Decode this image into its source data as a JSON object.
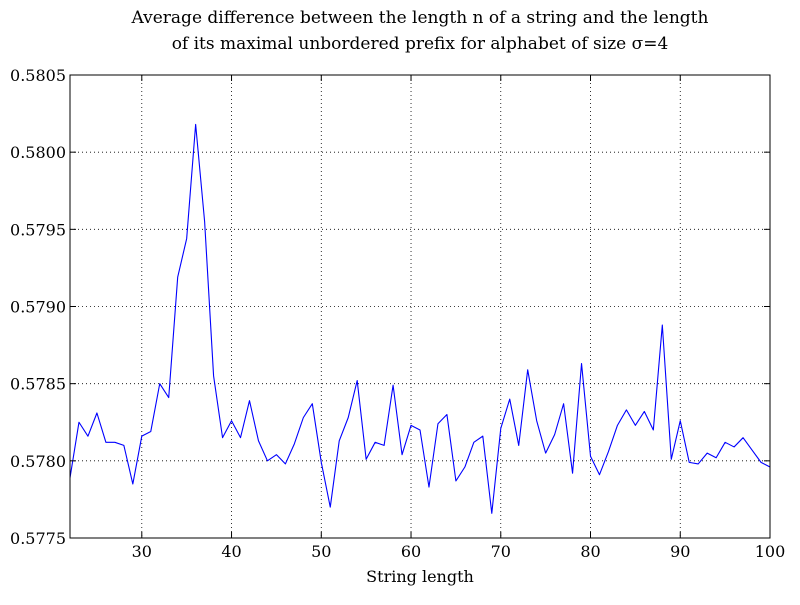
{
  "chart_data": {
    "type": "line",
    "title_lines": [
      "Average difference between the length n of a string and the length",
      "of its maximal unbordered prefix for alphabet of size σ=4"
    ],
    "xlabel": "String length",
    "ylabel": "",
    "xlim": [
      22,
      100
    ],
    "ylim": [
      0.5775,
      0.5805
    ],
    "x_ticks": [
      30,
      40,
      50,
      60,
      70,
      80,
      90,
      100
    ],
    "x_tick_labels": [
      "30",
      "40",
      "50",
      "60",
      "70",
      "80",
      "90",
      "100"
    ],
    "y_ticks": [
      0.5775,
      0.578,
      0.5785,
      0.579,
      0.5795,
      0.58,
      0.5805
    ],
    "y_tick_labels": [
      "0.5775",
      "0.5780",
      "0.5785",
      "0.5790",
      "0.5795",
      "0.5800",
      "0.5805"
    ],
    "grid": true,
    "series": [
      {
        "color": "#0000ff",
        "x": [
          22,
          23,
          24,
          25,
          26,
          27,
          28,
          29,
          30,
          31,
          32,
          33,
          34,
          35,
          36,
          37,
          38,
          39,
          40,
          41,
          42,
          43,
          44,
          45,
          46,
          47,
          48,
          49,
          50,
          51,
          52,
          53,
          54,
          55,
          56,
          57,
          58,
          59,
          60,
          61,
          62,
          63,
          64,
          65,
          66,
          67,
          68,
          69,
          70,
          71,
          72,
          73,
          74,
          75,
          76,
          77,
          78,
          79,
          80,
          81,
          82,
          83,
          84,
          85,
          86,
          87,
          88,
          89,
          90,
          91,
          92,
          93,
          94,
          95,
          96,
          97,
          98,
          99,
          100
        ],
        "y": [
          0.57789,
          0.57825,
          0.57816,
          0.57831,
          0.57812,
          0.57812,
          0.5781,
          0.57785,
          0.57816,
          0.57819,
          0.5785,
          0.57841,
          0.57919,
          0.57944,
          0.58018,
          0.57955,
          0.57855,
          0.57815,
          0.57826,
          0.57815,
          0.57839,
          0.57813,
          0.578,
          0.57804,
          0.57798,
          0.57811,
          0.57828,
          0.57837,
          0.57799,
          0.5777,
          0.57813,
          0.57828,
          0.57852,
          0.57801,
          0.57812,
          0.5781,
          0.57849,
          0.57804,
          0.57823,
          0.5782,
          0.57783,
          0.57824,
          0.5783,
          0.57787,
          0.57796,
          0.57812,
          0.57816,
          0.57766,
          0.57821,
          0.5784,
          0.5781,
          0.57859,
          0.57826,
          0.57805,
          0.57817,
          0.57837,
          0.57792,
          0.57863,
          0.57803,
          0.57791,
          0.57806,
          0.57823,
          0.57833,
          0.57823,
          0.57832,
          0.5782,
          0.57888,
          0.57801,
          0.57826,
          0.57799,
          0.57798,
          0.57805,
          0.57802,
          0.57812,
          0.57809,
          0.57815,
          0.57807,
          0.57799,
          0.57796
        ]
      }
    ]
  }
}
